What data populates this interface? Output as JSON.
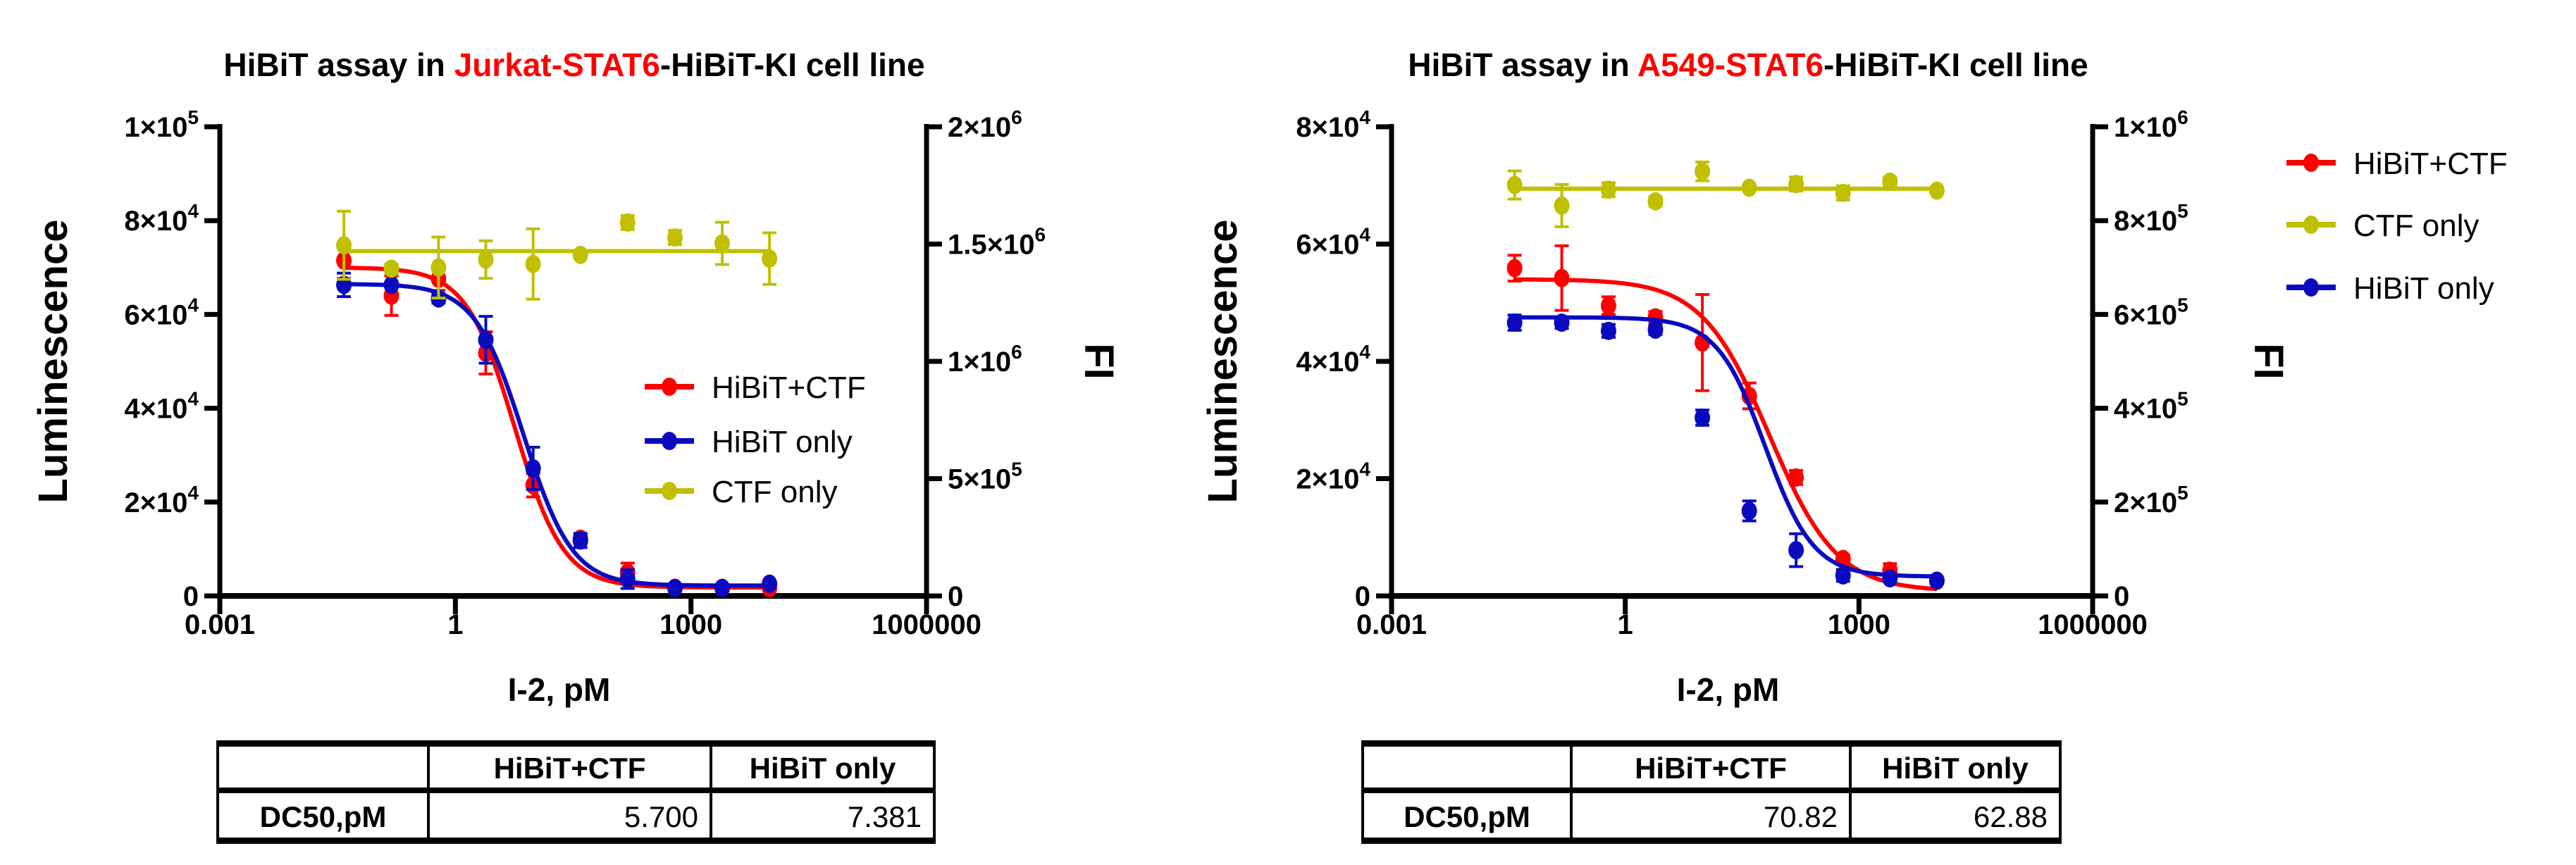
{
  "chart_data": [
    {
      "type": "scatter",
      "title": {
        "prefix": "HiBiT assay in ",
        "highlight": "Jurkat-STAT6",
        "suffix": "-HiBiT-KI cell line"
      },
      "title_highlight_color": "#ff0000",
      "xlabel": "I-2, pM",
      "ylabel": "Luminescence",
      "y2label": "FI",
      "xscale": "log",
      "xlim": [
        0.001,
        1000000
      ],
      "xticks": [
        "0.001",
        "1",
        "1000",
        "1000000"
      ],
      "ylim": [
        0,
        100000
      ],
      "yticks": [
        {
          "value": 0,
          "base": "0",
          "exp": ""
        },
        {
          "value": 20000,
          "base": "2×10",
          "exp": "4"
        },
        {
          "value": 40000,
          "base": "4×10",
          "exp": "4"
        },
        {
          "value": 60000,
          "base": "6×10",
          "exp": "4"
        },
        {
          "value": 80000,
          "base": "8×10",
          "exp": "4"
        },
        {
          "value": 100000,
          "base": "1×10",
          "exp": "5"
        }
      ],
      "y2lim": [
        0,
        2000000
      ],
      "y2ticks": [
        {
          "value": 0,
          "base": "0",
          "exp": ""
        },
        {
          "value": 500000,
          "base": "5×10",
          "exp": "5"
        },
        {
          "value": 1000000,
          "base": "1×10",
          "exp": "6"
        },
        {
          "value": 1500000,
          "base": "1.5×10",
          "exp": "6"
        },
        {
          "value": 2000000,
          "base": "2×10",
          "exp": "6"
        }
      ],
      "grid": false,
      "legend": "right-center",
      "series": [
        {
          "name": "HiBiT+CTF",
          "color": "#ff0000",
          "axis": "left",
          "x": [
            0.038,
            0.153,
            0.61,
            2.44,
            9.77,
            39.1,
            156,
            625,
            2500,
            10000
          ],
          "y": [
            71500,
            64000,
            67600,
            51800,
            23600,
            12200,
            5000,
            1700,
            1700,
            1700
          ],
          "err": [
            3800,
            4200,
            2500,
            4500,
            2500,
            1000,
            2000,
            500,
            500,
            500
          ]
        },
        {
          "name": "HiBiT only",
          "color": "#0a0ac0",
          "axis": "left",
          "x": [
            0.038,
            0.153,
            0.61,
            2.44,
            9.77,
            39.1,
            156,
            625,
            2500,
            10000
          ],
          "y": [
            66300,
            66300,
            63400,
            54600,
            27200,
            11800,
            3600,
            1700,
            1700,
            2600
          ],
          "err": [
            2500,
            500,
            1000,
            5000,
            4500,
            1500,
            2000,
            300,
            300,
            300
          ]
        },
        {
          "name": "CTF only",
          "color": "#c0c000",
          "axis": "right",
          "x": [
            0.038,
            0.153,
            0.61,
            2.44,
            9.77,
            39.1,
            156,
            625,
            2500,
            10000
          ],
          "y": [
            1495000,
            1395000,
            1400000,
            1434000,
            1415000,
            1454000,
            1592000,
            1528000,
            1503000,
            1438000
          ],
          "err": [
            145000,
            20000,
            130000,
            80000,
            150000,
            10000,
            30000,
            30000,
            90000,
            110000
          ]
        }
      ],
      "table": {
        "headers": [
          "",
          "HiBiT+CTF",
          "HiBiT only"
        ],
        "rows": [
          [
            "DC50,pM",
            "5.700",
            "7.381"
          ]
        ]
      }
    },
    {
      "type": "scatter",
      "title": {
        "prefix": "HiBiT assay in ",
        "highlight": "A549-STAT6",
        "suffix": "-HiBiT-KI cell line"
      },
      "title_highlight_color": "#ff0000",
      "xlabel": "I-2, pM",
      "ylabel": "Luminescence",
      "y2label": "FI",
      "xscale": "log",
      "xlim": [
        0.001,
        1000000
      ],
      "xticks": [
        "0.001",
        "1",
        "1000",
        "1000000"
      ],
      "ylim": [
        0,
        80000
      ],
      "yticks": [
        {
          "value": 0,
          "base": "0",
          "exp": ""
        },
        {
          "value": 20000,
          "base": "2×10",
          "exp": "4"
        },
        {
          "value": 40000,
          "base": "4×10",
          "exp": "4"
        },
        {
          "value": 60000,
          "base": "6×10",
          "exp": "4"
        },
        {
          "value": 80000,
          "base": "8×10",
          "exp": "4"
        }
      ],
      "y2lim": [
        0,
        1000000
      ],
      "y2ticks": [
        {
          "value": 0,
          "base": "0",
          "exp": ""
        },
        {
          "value": 200000,
          "base": "2×10",
          "exp": "5"
        },
        {
          "value": 400000,
          "base": "4×10",
          "exp": "5"
        },
        {
          "value": 600000,
          "base": "6×10",
          "exp": "5"
        },
        {
          "value": 800000,
          "base": "8×10",
          "exp": "5"
        },
        {
          "value": 1000000,
          "base": "1×10",
          "exp": "6"
        }
      ],
      "grid": false,
      "legend": "top-right-outside",
      "series": [
        {
          "name": "HiBiT+CTF",
          "color": "#ff0000",
          "axis": "left",
          "x": [
            0.038,
            0.153,
            0.61,
            2.44,
            9.77,
            39.1,
            156,
            625,
            2500,
            10000
          ],
          "y": [
            55900,
            54200,
            49500,
            47500,
            43200,
            34100,
            20200,
            6300,
            4300,
            2600
          ],
          "err": [
            2200,
            5500,
            1500,
            1000,
            8200,
            2200,
            1200,
            700,
            1200,
            500
          ]
        },
        {
          "name": "CTF only",
          "color": "#c0c000",
          "axis": "right",
          "x": [
            0.038,
            0.153,
            0.61,
            2.44,
            9.77,
            39.1,
            156,
            625,
            2500,
            10000
          ],
          "y": [
            876000,
            832000,
            866000,
            841000,
            905000,
            870000,
            878000,
            859000,
            883000,
            864000
          ],
          "err": [
            30000,
            45000,
            15000,
            10000,
            20000,
            5000,
            15000,
            15000,
            10000,
            5000
          ]
        },
        {
          "name": "HiBiT only",
          "color": "#0a0ac0",
          "axis": "left",
          "x": [
            0.038,
            0.153,
            0.61,
            2.44,
            9.77,
            39.1,
            156,
            625,
            2500,
            10000
          ],
          "y": [
            46600,
            46600,
            45200,
            45400,
            30400,
            14500,
            7800,
            3500,
            3000,
            2600
          ],
          "err": [
            1300,
            1000,
            1100,
            800,
            1300,
            1700,
            2800,
            1000,
            600,
            300
          ]
        }
      ],
      "table": {
        "headers": [
          "",
          "HiBiT+CTF",
          "HiBiT only"
        ],
        "rows": [
          [
            "DC50,pM",
            "70.82",
            "62.88"
          ]
        ]
      }
    }
  ]
}
